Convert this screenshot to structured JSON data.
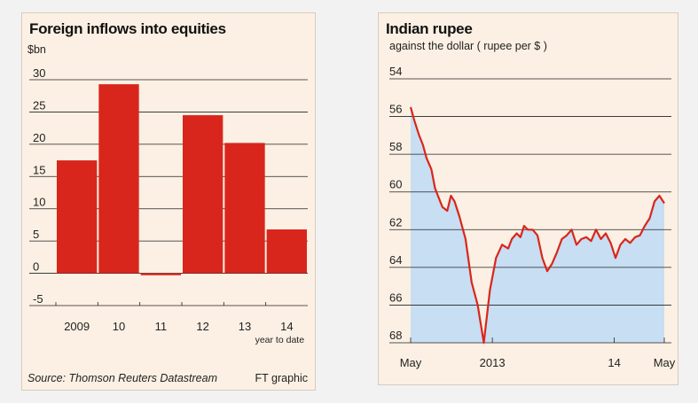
{
  "chart_data": [
    {
      "type": "bar",
      "title": "Foreign inflows into equities",
      "ylabel": "$bn",
      "categories": [
        "2009",
        "10",
        "11",
        "12",
        "13",
        "14"
      ],
      "category_note": {
        "14": "year to date"
      },
      "values": [
        17.5,
        29.3,
        -0.3,
        24.5,
        20.2,
        6.8
      ],
      "ylim": [
        -5,
        30
      ],
      "yticks": [
        "30",
        "25",
        "20",
        "15",
        "10",
        "5",
        "0",
        "-5"
      ],
      "grid": true,
      "color": "#d9261c",
      "source": "Source: Thomson Reuters Datastream",
      "credit": "FT graphic"
    },
    {
      "type": "area",
      "title": "Indian rupee",
      "subtitle": "against the dollar  ( rupee per $ )",
      "ylim": [
        54,
        68
      ],
      "y_inverted": true,
      "yticks": [
        "54",
        "56",
        "58",
        "60",
        "62",
        "64",
        "66",
        "68"
      ],
      "xticks": [
        "May",
        "2013",
        "14",
        "May"
      ],
      "line_color": "#d9261c",
      "fill_color": "#c7def3",
      "grid": true,
      "x": [
        0,
        0.03,
        0.07,
        0.1,
        0.13,
        0.17,
        0.2,
        0.23,
        0.26,
        0.3,
        0.33,
        0.36,
        0.4,
        0.45,
        0.5,
        0.55,
        0.6,
        0.65,
        0.7,
        0.75,
        0.8,
        0.83,
        0.87,
        0.9,
        0.93,
        0.96,
        1.0,
        1.04,
        1.08,
        1.12,
        1.16,
        1.2,
        1.24,
        1.28,
        1.32,
        1.36,
        1.4,
        1.44,
        1.48,
        1.52,
        1.56,
        1.6,
        1.64,
        1.68,
        1.72,
        1.76,
        1.8,
        1.84,
        1.88,
        1.92,
        1.96,
        2.0,
        2.04,
        2.08
      ],
      "values": [
        55.5,
        56.2,
        57.0,
        57.5,
        58.2,
        58.8,
        59.8,
        60.3,
        60.8,
        61.0,
        60.2,
        60.5,
        61.3,
        62.5,
        64.8,
        66.0,
        68.0,
        65.2,
        63.5,
        62.8,
        63.0,
        62.5,
        62.2,
        62.4,
        61.8,
        62.0,
        62.0,
        62.3,
        63.5,
        64.2,
        63.8,
        63.2,
        62.5,
        62.3,
        62.0,
        62.8,
        62.5,
        62.4,
        62.6,
        62.0,
        62.5,
        62.2,
        62.7,
        63.5,
        62.8,
        62.5,
        62.7,
        62.4,
        62.3,
        61.8,
        61.4,
        60.5,
        60.2,
        60.6
      ]
    }
  ]
}
